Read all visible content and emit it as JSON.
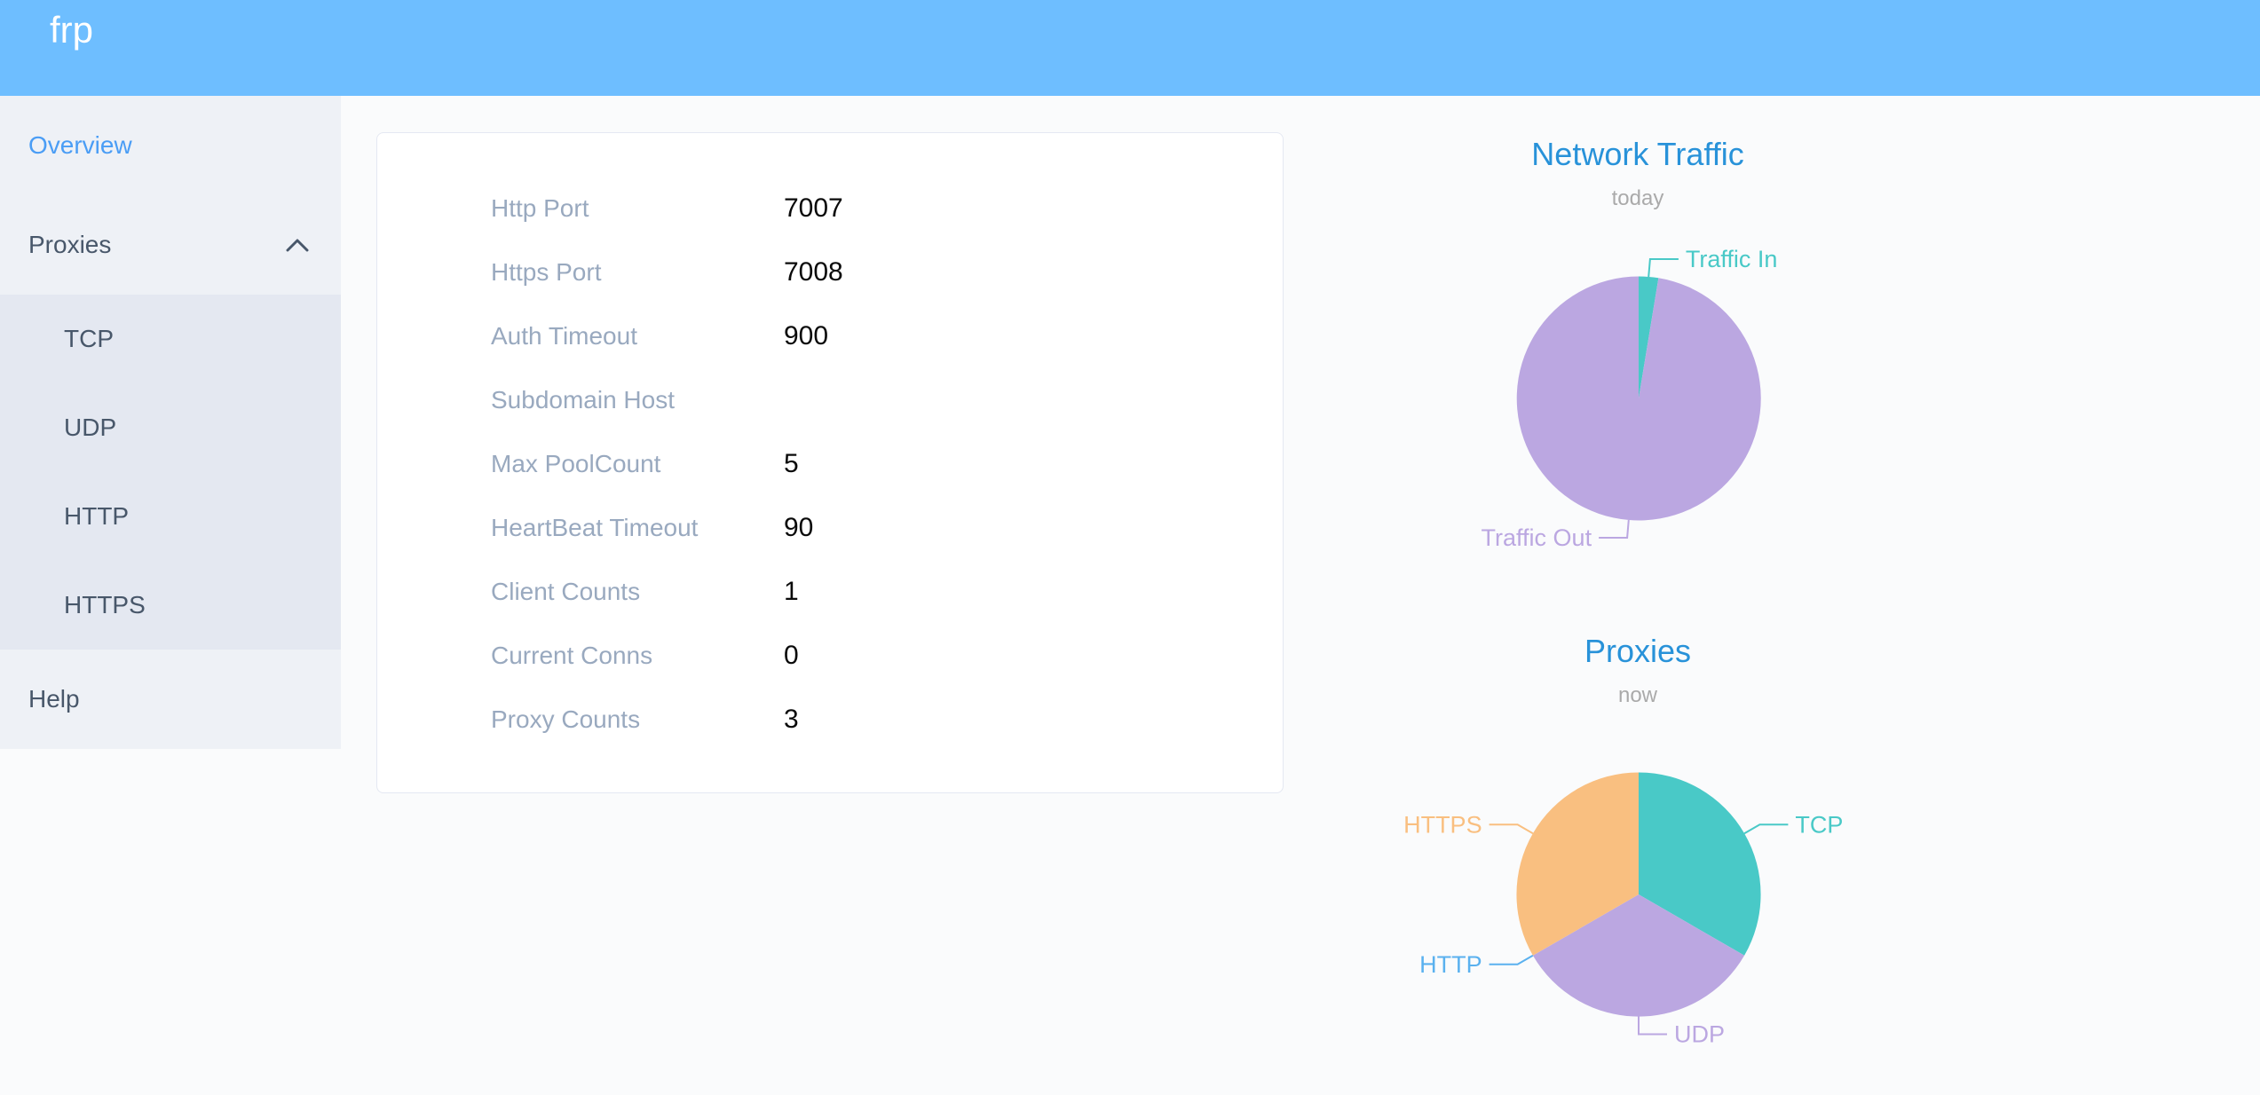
{
  "app": {
    "logo": "frp"
  },
  "colors": {
    "header_bg": "#6ebeff",
    "sidebar_bg": "#eef1f6",
    "submenu_bg": "#e4e8f1",
    "menu_text": "#48576a",
    "menu_active": "#4a9df5",
    "chart_title": "#2892d9",
    "chart_subtitle": "#aaaaaa",
    "config_label": "#99a9bf",
    "teal": "#49c9c7",
    "purple": "#bba7e1",
    "blue": "#5ab1ef",
    "orange": "#f9bf80"
  },
  "sidebar": {
    "items": [
      {
        "label": "Overview",
        "active": true
      },
      {
        "label": "Proxies",
        "expanded": true,
        "children": [
          {
            "label": "TCP"
          },
          {
            "label": "UDP"
          },
          {
            "label": "HTTP"
          },
          {
            "label": "HTTPS"
          }
        ]
      },
      {
        "label": "Help",
        "active": false
      }
    ]
  },
  "overview_card": {
    "rows": [
      {
        "label": "Http Port",
        "value": "7007"
      },
      {
        "label": "Https Port",
        "value": "7008"
      },
      {
        "label": "Auth Timeout",
        "value": "900"
      },
      {
        "label": "Subdomain Host",
        "value": ""
      },
      {
        "label": "Max PoolCount",
        "value": "5"
      },
      {
        "label": "HeartBeat Timeout",
        "value": "90"
      },
      {
        "label": "Client Counts",
        "value": "1"
      },
      {
        "label": "Current Conns",
        "value": "0"
      },
      {
        "label": "Proxy Counts",
        "value": "3"
      }
    ]
  },
  "chart_data": [
    {
      "type": "pie",
      "title": "Network Traffic",
      "subtitle": "today",
      "categories": [
        "Traffic In",
        "Traffic Out"
      ],
      "values": [
        2.6,
        97.4
      ],
      "values_are": "percent share estimated from slice angles (no numeric labels shown)",
      "colors": [
        "#49c9c7",
        "#bba7e1"
      ],
      "label_position": "outside-with-connector",
      "legend_position": "none",
      "start_angle_deg": 0,
      "direction": "clockwise"
    },
    {
      "type": "pie",
      "title": "Proxies",
      "subtitle": "now",
      "categories": [
        "TCP",
        "UDP",
        "HTTP",
        "HTTPS"
      ],
      "values": [
        1,
        1,
        0,
        1
      ],
      "colors": [
        "#49c9c7",
        "#bba7e1",
        "#5ab1ef",
        "#f9bf80"
      ],
      "label_position": "outside-with-connector",
      "legend_position": "none",
      "start_angle_deg": 0,
      "direction": "clockwise"
    }
  ]
}
